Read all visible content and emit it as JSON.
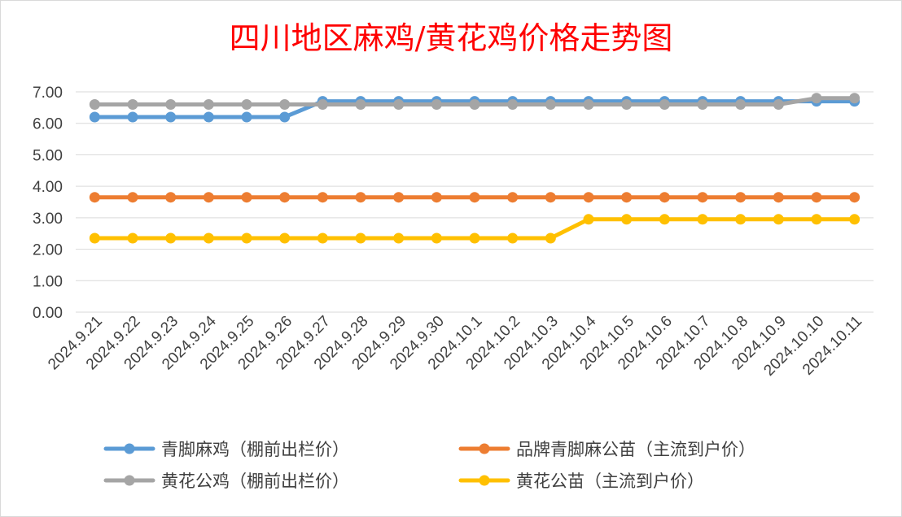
{
  "chart_data": {
    "type": "line",
    "title": "四川地区麻鸡/黄花鸡价格走势图",
    "categories": [
      "2024.9.21",
      "2024.9.22",
      "2024.9.23",
      "2024.9.24",
      "2024.9.25",
      "2024.9.26",
      "2024.9.27",
      "2024.9.28",
      "2024.9.29",
      "2024.9.30",
      "2024.10.1",
      "2024.10.2",
      "2024.10.3",
      "2024.10.4",
      "2024.10.5",
      "2024.10.6",
      "2024.10.7",
      "2024.10.8",
      "2024.10.9",
      "2024.10.10",
      "2024.10.11"
    ],
    "ylim": [
      0,
      7
    ],
    "yticks": [
      "0.00",
      "1.00",
      "2.00",
      "3.00",
      "4.00",
      "5.00",
      "6.00",
      "7.00"
    ],
    "grid": true,
    "legend_position": "bottom",
    "series": [
      {
        "name": "青脚麻鸡（棚前出栏价）",
        "color": "#5b9bd5",
        "values": [
          6.2,
          6.2,
          6.2,
          6.2,
          6.2,
          6.2,
          6.7,
          6.7,
          6.7,
          6.7,
          6.7,
          6.7,
          6.7,
          6.7,
          6.7,
          6.7,
          6.7,
          6.7,
          6.7,
          6.7,
          6.7
        ]
      },
      {
        "name": "品牌青脚麻公苗（主流到户价）",
        "color": "#ed7d31",
        "values": [
          3.65,
          3.65,
          3.65,
          3.65,
          3.65,
          3.65,
          3.65,
          3.65,
          3.65,
          3.65,
          3.65,
          3.65,
          3.65,
          3.65,
          3.65,
          3.65,
          3.65,
          3.65,
          3.65,
          3.65,
          3.65
        ]
      },
      {
        "name": "黄花公鸡（棚前出栏价）",
        "color": "#a5a5a5",
        "values": [
          6.6,
          6.6,
          6.6,
          6.6,
          6.6,
          6.6,
          6.6,
          6.6,
          6.6,
          6.6,
          6.6,
          6.6,
          6.6,
          6.6,
          6.6,
          6.6,
          6.6,
          6.6,
          6.6,
          6.8,
          6.8
        ]
      },
      {
        "name": "黄花公苗（主流到户价）",
        "color": "#ffc000",
        "values": [
          2.35,
          2.35,
          2.35,
          2.35,
          2.35,
          2.35,
          2.35,
          2.35,
          2.35,
          2.35,
          2.35,
          2.35,
          2.35,
          2.95,
          2.95,
          2.95,
          2.95,
          2.95,
          2.95,
          2.95,
          2.95
        ]
      }
    ]
  }
}
